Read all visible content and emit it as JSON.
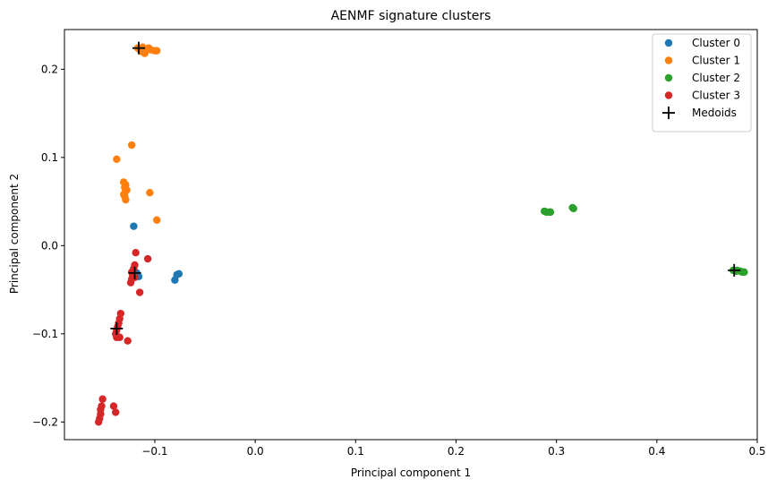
{
  "chart_data": {
    "type": "scatter",
    "title": "AENMF signature clusters",
    "xlabel": "Principal component 1",
    "ylabel": "Principal component 2",
    "xlim": [
      -0.19,
      0.5
    ],
    "ylim": [
      -0.22,
      0.245
    ],
    "xticks": [
      -0.1,
      0.0,
      0.1,
      0.2,
      0.3,
      0.4,
      0.5
    ],
    "xtick_labels": [
      "−0.1",
      "0.0",
      "0.1",
      "0.2",
      "0.3",
      "0.4",
      "0.5"
    ],
    "yticks": [
      -0.2,
      -0.1,
      0.0,
      0.1,
      0.2
    ],
    "ytick_labels": [
      "−0.2",
      "−0.1",
      "0.0",
      "0.1",
      "0.2"
    ],
    "grid": false,
    "legend_position": "top-right",
    "series": [
      {
        "name": "Cluster 0",
        "color": "#1f77b4",
        "marker": "circle",
        "points": [
          [
            -0.121,
            0.022
          ],
          [
            -0.076,
            -0.032
          ],
          [
            -0.078,
            -0.033
          ],
          [
            -0.08,
            -0.039
          ],
          [
            -0.118,
            -0.031
          ],
          [
            -0.116,
            -0.035
          ]
        ]
      },
      {
        "name": "Cluster 1",
        "color": "#ff7f0e",
        "marker": "circle",
        "points": [
          [
            -0.117,
            0.224
          ],
          [
            -0.112,
            0.225
          ],
          [
            -0.108,
            0.223
          ],
          [
            -0.104,
            0.222
          ],
          [
            -0.1,
            0.221
          ],
          [
            -0.098,
            0.221
          ],
          [
            -0.113,
            0.22
          ],
          [
            -0.11,
            0.218
          ],
          [
            -0.106,
            0.224
          ],
          [
            -0.115,
            0.222
          ],
          [
            -0.123,
            0.114
          ],
          [
            -0.138,
            0.098
          ],
          [
            -0.131,
            0.072
          ],
          [
            -0.129,
            0.069
          ],
          [
            -0.13,
            0.066
          ],
          [
            -0.128,
            0.063
          ],
          [
            -0.129,
            0.062
          ],
          [
            -0.131,
            0.058
          ],
          [
            -0.13,
            0.056
          ],
          [
            -0.129,
            0.052
          ],
          [
            -0.105,
            0.06
          ],
          [
            -0.098,
            0.029
          ]
        ]
      },
      {
        "name": "Cluster 2",
        "color": "#2ca02c",
        "marker": "circle",
        "points": [
          [
            0.288,
            0.039
          ],
          [
            0.29,
            0.038
          ],
          [
            0.293,
            0.038
          ],
          [
            0.294,
            0.038
          ],
          [
            0.316,
            0.043
          ],
          [
            0.317,
            0.042
          ],
          [
            0.476,
            -0.028
          ],
          [
            0.48,
            -0.028
          ],
          [
            0.483,
            -0.029
          ],
          [
            0.485,
            -0.03
          ],
          [
            0.487,
            -0.03
          ],
          [
            0.479,
            -0.029
          ]
        ]
      },
      {
        "name": "Cluster 3",
        "color": "#d62728",
        "marker": "circle",
        "points": [
          [
            -0.119,
            -0.008
          ],
          [
            -0.107,
            -0.015
          ],
          [
            -0.12,
            -0.022
          ],
          [
            -0.121,
            -0.026
          ],
          [
            -0.123,
            -0.03
          ],
          [
            -0.122,
            -0.034
          ],
          [
            -0.123,
            -0.038
          ],
          [
            -0.124,
            -0.042
          ],
          [
            -0.12,
            -0.036
          ],
          [
            -0.115,
            -0.053
          ],
          [
            -0.134,
            -0.077
          ],
          [
            -0.135,
            -0.083
          ],
          [
            -0.136,
            -0.088
          ],
          [
            -0.137,
            -0.092
          ],
          [
            -0.138,
            -0.096
          ],
          [
            -0.139,
            -0.1
          ],
          [
            -0.138,
            -0.104
          ],
          [
            -0.135,
            -0.104
          ],
          [
            -0.127,
            -0.108
          ],
          [
            -0.152,
            -0.174
          ],
          [
            -0.153,
            -0.182
          ],
          [
            -0.154,
            -0.186
          ],
          [
            -0.154,
            -0.191
          ],
          [
            -0.155,
            -0.196
          ],
          [
            -0.156,
            -0.2
          ],
          [
            -0.141,
            -0.182
          ],
          [
            -0.139,
            -0.189
          ]
        ]
      },
      {
        "name": "Medoids",
        "color": "#000000",
        "marker": "plus",
        "points": [
          [
            -0.116,
            0.224
          ],
          [
            -0.12,
            -0.031
          ],
          [
            -0.138,
            -0.094
          ],
          [
            0.477,
            -0.028
          ]
        ]
      }
    ]
  }
}
